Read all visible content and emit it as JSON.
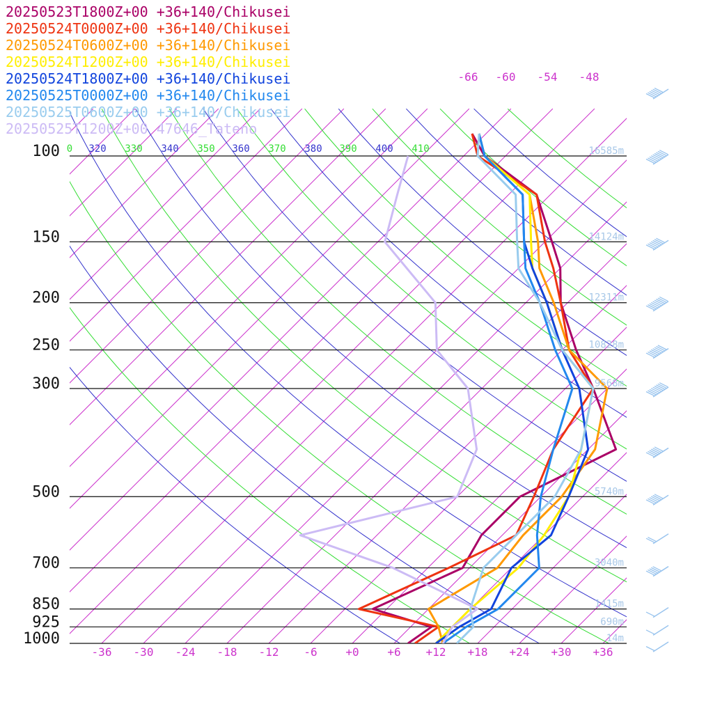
{
  "chart_data": {
    "type": "line",
    "subtype": "skew-T log-P sounding",
    "legend_placement": "top-left",
    "grid": true,
    "pressure_levels": [
      {
        "p": 100,
        "label": "100",
        "height": "16585m"
      },
      {
        "p": 150,
        "label": "150",
        "height": "14124m"
      },
      {
        "p": 200,
        "label": "200",
        "height": "12311m"
      },
      {
        "p": 250,
        "label": "250",
        "height": "10828m"
      },
      {
        "p": 300,
        "label": "300",
        "height": "9568m"
      },
      {
        "p": 500,
        "label": "500",
        "height": "5740m"
      },
      {
        "p": 700,
        "label": "700",
        "height": "3040m"
      },
      {
        "p": 850,
        "label": "850",
        "height": "1415m"
      },
      {
        "p": 925,
        "label": "925",
        "height": "690m"
      },
      {
        "p": 1000,
        "label": "1000",
        "height": "14m"
      }
    ],
    "x_ticks": [
      "-36",
      "-30",
      "-24",
      "-18",
      "-12",
      "-6",
      "+0",
      "+6",
      "+12",
      "+18",
      "+24",
      "+30",
      "+36"
    ],
    "x_tick_values": [
      -36,
      -30,
      -24,
      -18,
      -12,
      -6,
      0,
      6,
      12,
      18,
      24,
      30,
      36
    ],
    "top_ticks": [
      "-66",
      "-60",
      "-54",
      "-48"
    ],
    "theta_labels": [
      {
        "text": "0",
        "color": "#33dd33"
      },
      {
        "text": "320",
        "color": "#3333cc"
      },
      {
        "text": "330",
        "color": "#33dd33"
      },
      {
        "text": "340",
        "color": "#3333cc"
      },
      {
        "text": "350",
        "color": "#33dd33"
      },
      {
        "text": "360",
        "color": "#3333cc"
      },
      {
        "text": "370",
        "color": "#33dd33"
      },
      {
        "text": "380",
        "color": "#3333cc"
      },
      {
        "text": "390",
        "color": "#33dd33"
      },
      {
        "text": "400",
        "color": "#3333cc"
      },
      {
        "text": "410",
        "color": "#33dd33"
      }
    ],
    "series": [
      {
        "name": "20250523T1800Z+00 +36+140/Chikusei",
        "color": "#aa0066",
        "points": [
          [
            1000,
            8
          ],
          [
            925,
            9
          ],
          [
            850,
            -2
          ],
          [
            700,
            5
          ],
          [
            600,
            3
          ],
          [
            500,
            3
          ],
          [
            400,
            10
          ],
          [
            300,
            -2
          ],
          [
            250,
            -10
          ],
          [
            200,
            -19
          ],
          [
            170,
            -24
          ],
          [
            150,
            -29
          ],
          [
            120,
            -38
          ],
          [
            100,
            -51
          ],
          [
            90,
            -56
          ]
        ]
      },
      {
        "name": "20250524T0000Z+00 +36+140/Chikusei",
        "color": "#ee3311",
        "points": [
          [
            1000,
            9
          ],
          [
            925,
            10
          ],
          [
            850,
            -4
          ],
          [
            700,
            3
          ],
          [
            600,
            8
          ],
          [
            500,
            5
          ],
          [
            400,
            1
          ],
          [
            300,
            -2
          ],
          [
            250,
            -11
          ],
          [
            200,
            -19
          ],
          [
            170,
            -25
          ],
          [
            150,
            -30
          ],
          [
            120,
            -38
          ],
          [
            100,
            -52
          ],
          [
            90,
            -56
          ]
        ]
      },
      {
        "name": "20250524T0600Z+00 +36+140/Chikusei",
        "color": "#ff9900",
        "points": [
          [
            1000,
            13
          ],
          [
            925,
            10
          ],
          [
            850,
            6
          ],
          [
            700,
            10
          ],
          [
            600,
            9
          ],
          [
            500,
            9
          ],
          [
            400,
            7
          ],
          [
            300,
            0
          ],
          [
            250,
            -11
          ],
          [
            200,
            -20
          ],
          [
            170,
            -27
          ],
          [
            150,
            -31
          ],
          [
            120,
            -39
          ],
          [
            100,
            -51
          ],
          [
            90,
            -55
          ]
        ]
      },
      {
        "name": "20250524T1200Z+00 +36+140/Chikusei",
        "color": "#ffee00",
        "points": [
          [
            1000,
            12
          ],
          [
            925,
            12
          ],
          [
            850,
            12
          ],
          [
            700,
            13
          ],
          [
            600,
            12
          ],
          [
            500,
            10
          ],
          [
            400,
            5
          ],
          [
            300,
            -2
          ],
          [
            250,
            -12
          ],
          [
            200,
            -21
          ],
          [
            170,
            -28
          ],
          [
            150,
            -32
          ],
          [
            120,
            -39
          ],
          [
            100,
            -51
          ],
          [
            90,
            -55
          ]
        ]
      },
      {
        "name": "20250524T1800Z+00 +36+140/Chikusei",
        "color": "#1144dd",
        "points": [
          [
            1000,
            12
          ],
          [
            925,
            13
          ],
          [
            850,
            15
          ],
          [
            700,
            12
          ],
          [
            600,
            13
          ],
          [
            500,
            10
          ],
          [
            400,
            6
          ],
          [
            300,
            -4
          ],
          [
            250,
            -12
          ],
          [
            200,
            -21
          ],
          [
            170,
            -28
          ],
          [
            150,
            -33
          ],
          [
            120,
            -40
          ],
          [
            100,
            -51
          ],
          [
            90,
            -55
          ]
        ]
      },
      {
        "name": "20250525T0000Z+00 +36+140/Chikusei",
        "color": "#2288ee",
        "points": [
          [
            1000,
            13
          ],
          [
            925,
            14
          ],
          [
            850,
            16
          ],
          [
            700,
            16
          ],
          [
            600,
            11
          ],
          [
            500,
            6
          ],
          [
            400,
            1
          ],
          [
            300,
            -5
          ],
          [
            250,
            -13
          ],
          [
            200,
            -22
          ],
          [
            170,
            -29
          ],
          [
            150,
            -33
          ],
          [
            120,
            -40
          ],
          [
            100,
            -51
          ],
          [
            90,
            -55
          ]
        ]
      },
      {
        "name": "20250525T0600Z+00 +36+140/Chikusei",
        "color": "#99ccee",
        "points": [
          [
            1000,
            15
          ],
          [
            925,
            15
          ],
          [
            850,
            12
          ],
          [
            700,
            8
          ],
          [
            600,
            8
          ],
          [
            500,
            8
          ],
          [
            400,
            5
          ],
          [
            300,
            -2
          ],
          [
            250,
            -12
          ],
          [
            200,
            -22
          ],
          [
            170,
            -30
          ],
          [
            150,
            -34
          ],
          [
            120,
            -41
          ],
          [
            100,
            -52
          ],
          [
            90,
            -55
          ]
        ]
      },
      {
        "name": "20250525T1200Z+00 47646_Tateno",
        "color": "#ccbbf5",
        "points": [
          [
            1000,
            13
          ],
          [
            925,
            12
          ],
          [
            850,
            13
          ],
          [
            700,
            -5
          ],
          [
            600,
            -23
          ],
          [
            500,
            -6
          ],
          [
            400,
            -10
          ],
          [
            300,
            -20
          ],
          [
            250,
            -30
          ],
          [
            200,
            -37
          ],
          [
            150,
            -53
          ],
          [
            120,
            -58
          ],
          [
            100,
            -62
          ]
        ]
      }
    ],
    "barbs": [
      {
        "p": 75,
        "speed_kt": 55
      },
      {
        "p": 100,
        "speed_kt": 85
      },
      {
        "p": 150,
        "speed_kt": 70
      },
      {
        "p": 200,
        "speed_kt": 90
      },
      {
        "p": 250,
        "speed_kt": 80
      },
      {
        "p": 300,
        "speed_kt": 85
      },
      {
        "p": 400,
        "speed_kt": 60
      },
      {
        "p": 500,
        "speed_kt": 55
      },
      {
        "p": 600,
        "speed_kt": 20
      },
      {
        "p": 700,
        "speed_kt": 45
      },
      {
        "p": 850,
        "speed_kt": 10
      },
      {
        "p": 925,
        "speed_kt": 5
      },
      {
        "p": 1000,
        "speed_kt": 5
      }
    ]
  }
}
